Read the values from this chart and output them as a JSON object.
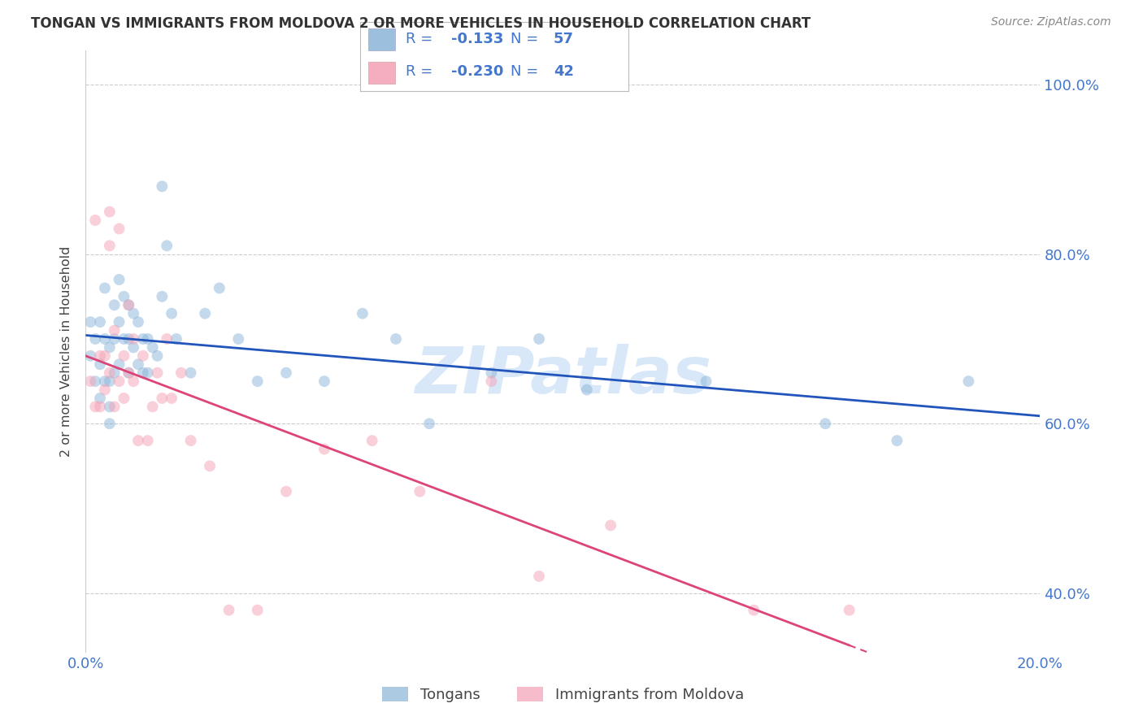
{
  "title": "TONGAN VS IMMIGRANTS FROM MOLDOVA 2 OR MORE VEHICLES IN HOUSEHOLD CORRELATION CHART",
  "source": "Source: ZipAtlas.com",
  "ylabel": "2 or more Vehicles in Household",
  "xlim": [
    0.0,
    0.2
  ],
  "ylim": [
    0.33,
    1.04
  ],
  "yticks": [
    0.4,
    0.6,
    0.8,
    1.0
  ],
  "ytick_labels": [
    "40.0%",
    "60.0%",
    "80.0%",
    "100.0%"
  ],
  "xticks": [
    0.0,
    0.02,
    0.04,
    0.06,
    0.08,
    0.1,
    0.12,
    0.14,
    0.16,
    0.18,
    0.2
  ],
  "xtick_labels": [
    "0.0%",
    "",
    "",
    "",
    "",
    "",
    "",
    "",
    "",
    "",
    "20.0%"
  ],
  "tongan_R": -0.133,
  "tongan_N": 57,
  "moldova_R": -0.23,
  "moldova_N": 42,
  "blue_color": "#8AB4D8",
  "pink_color": "#F4A0B5",
  "line_blue": "#2255BB",
  "line_pink": "#DD4477",
  "scatter_alpha": 0.5,
  "scatter_size": 100,
  "tongan_x": [
    0.001,
    0.001,
    0.002,
    0.002,
    0.003,
    0.003,
    0.003,
    0.004,
    0.004,
    0.004,
    0.005,
    0.005,
    0.005,
    0.005,
    0.006,
    0.006,
    0.006,
    0.007,
    0.007,
    0.007,
    0.008,
    0.008,
    0.009,
    0.009,
    0.009,
    0.01,
    0.01,
    0.011,
    0.011,
    0.012,
    0.012,
    0.013,
    0.013,
    0.014,
    0.015,
    0.016,
    0.016,
    0.017,
    0.018,
    0.019,
    0.022,
    0.025,
    0.028,
    0.032,
    0.036,
    0.042,
    0.05,
    0.058,
    0.065,
    0.072,
    0.085,
    0.095,
    0.105,
    0.13,
    0.155,
    0.17,
    0.185
  ],
  "tongan_y": [
    0.68,
    0.72,
    0.65,
    0.7,
    0.72,
    0.67,
    0.63,
    0.76,
    0.7,
    0.65,
    0.69,
    0.65,
    0.62,
    0.6,
    0.74,
    0.7,
    0.66,
    0.77,
    0.72,
    0.67,
    0.75,
    0.7,
    0.74,
    0.7,
    0.66,
    0.73,
    0.69,
    0.72,
    0.67,
    0.7,
    0.66,
    0.7,
    0.66,
    0.69,
    0.68,
    0.88,
    0.75,
    0.81,
    0.73,
    0.7,
    0.66,
    0.73,
    0.76,
    0.7,
    0.65,
    0.66,
    0.65,
    0.73,
    0.7,
    0.6,
    0.66,
    0.7,
    0.64,
    0.65,
    0.6,
    0.58,
    0.65
  ],
  "moldova_x": [
    0.001,
    0.002,
    0.002,
    0.003,
    0.003,
    0.004,
    0.004,
    0.005,
    0.005,
    0.005,
    0.006,
    0.006,
    0.007,
    0.007,
    0.008,
    0.008,
    0.009,
    0.009,
    0.01,
    0.01,
    0.011,
    0.012,
    0.013,
    0.014,
    0.015,
    0.016,
    0.017,
    0.018,
    0.02,
    0.022,
    0.026,
    0.03,
    0.036,
    0.042,
    0.05,
    0.06,
    0.07,
    0.085,
    0.095,
    0.11,
    0.14,
    0.16
  ],
  "moldova_y": [
    0.65,
    0.84,
    0.62,
    0.68,
    0.62,
    0.68,
    0.64,
    0.85,
    0.81,
    0.66,
    0.71,
    0.62,
    0.83,
    0.65,
    0.68,
    0.63,
    0.74,
    0.66,
    0.7,
    0.65,
    0.58,
    0.68,
    0.58,
    0.62,
    0.66,
    0.63,
    0.7,
    0.63,
    0.66,
    0.58,
    0.55,
    0.38,
    0.38,
    0.52,
    0.57,
    0.58,
    0.52,
    0.65,
    0.42,
    0.48,
    0.38,
    0.38
  ],
  "legend_text_color": "#4477CC",
  "axis_label_color": "#4477CC",
  "tick_color": "#4477CC",
  "watermark_text": "ZIPatlas",
  "watermark_color": "#D8E8F8",
  "title_color": "#333333",
  "grid_color": "#CCCCCC"
}
